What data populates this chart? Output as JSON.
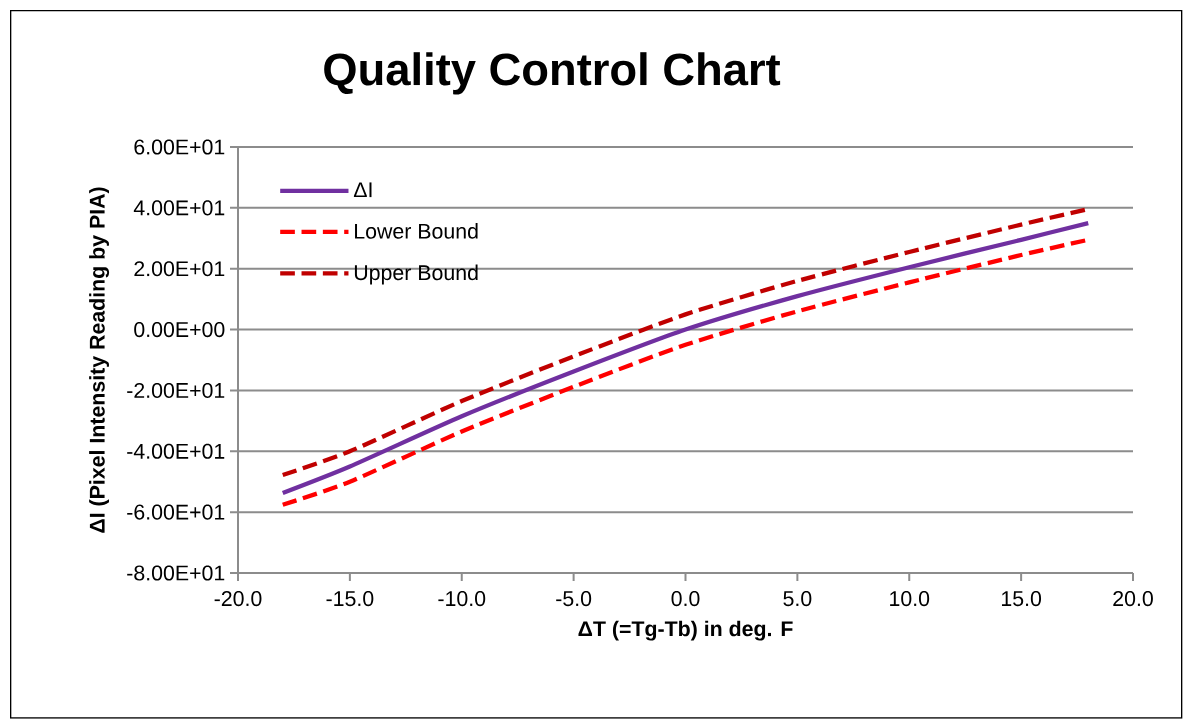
{
  "chart_data": {
    "type": "line",
    "title": "Quality Control Chart",
    "xlabel": "ΔT (=Tg-Tb) in deg. F",
    "ylabel": "ΔI (Pixel Intensity Reading by PIA)",
    "x": [
      -18,
      -15,
      -10,
      -5,
      0,
      5,
      10,
      15,
      18
    ],
    "series": [
      {
        "name": "ΔI",
        "color": "#7030a0",
        "line_style": "solid",
        "values": [
          -53.7,
          -45,
          -28.5,
          -13.8,
          0,
          11,
          20.5,
          29.5,
          35
        ]
      },
      {
        "name": "Lower Bound",
        "color": "#ff0000",
        "line_style": "dashed",
        "values": [
          -57.6,
          -50,
          -33.5,
          -18.8,
          -5,
          6,
          15.5,
          24.5,
          29.5
        ]
      },
      {
        "name": "Upper Bound",
        "color": "#c00000",
        "line_style": "dashed",
        "values": [
          -47.8,
          -40,
          -23.5,
          -8.8,
          5,
          16,
          25.5,
          34.5,
          39.6
        ]
      }
    ],
    "xlim": [
      -20,
      20
    ],
    "ylim": [
      -80,
      60
    ],
    "xticks": [
      {
        "value": -20,
        "label": "-20.0"
      },
      {
        "value": -15,
        "label": "-15.0"
      },
      {
        "value": -10,
        "label": "-10.0"
      },
      {
        "value": -5,
        "label": "-5.0"
      },
      {
        "value": 0,
        "label": "0.0"
      },
      {
        "value": 5,
        "label": "5.0"
      },
      {
        "value": 10,
        "label": "10.0"
      },
      {
        "value": 15,
        "label": "15.0"
      },
      {
        "value": 20,
        "label": "20.0"
      }
    ],
    "yticks": [
      {
        "value": -80,
        "label": "-8.00E+01"
      },
      {
        "value": -60,
        "label": "-6.00E+01"
      },
      {
        "value": -40,
        "label": "-4.00E+01"
      },
      {
        "value": -20,
        "label": "-2.00E+01"
      },
      {
        "value": 0,
        "label": "0.00E+00"
      },
      {
        "value": 20,
        "label": "2.00E+01"
      },
      {
        "value": 40,
        "label": "4.00E+01"
      },
      {
        "value": 60,
        "label": "6.00E+01"
      }
    ],
    "grid": "y",
    "legend": "top left",
    "marker": "none"
  }
}
